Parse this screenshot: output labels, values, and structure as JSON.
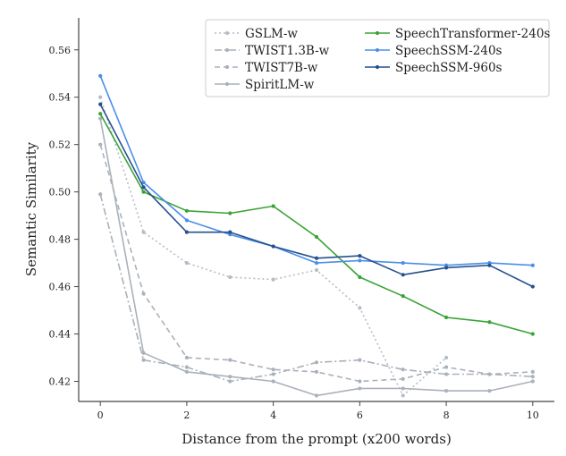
{
  "chart_data": {
    "type": "line",
    "xlabel": "Distance from the prompt (x200 words)",
    "ylabel": "Semantic Similarity",
    "xlim": [
      -0.5,
      10.5
    ],
    "ylim": [
      0.4115,
      0.5735
    ],
    "xticks": [
      0,
      2,
      4,
      6,
      8,
      10
    ],
    "yticks": [
      0.42,
      0.44,
      0.46,
      0.48,
      0.5,
      0.52,
      0.54,
      0.56
    ],
    "grid": false,
    "legend_position": "top-right",
    "x": [
      0,
      1,
      2,
      3,
      4,
      5,
      6,
      7,
      8,
      9,
      10
    ],
    "series": [
      {
        "name": "GSLM-w",
        "color": "#b6bcc5",
        "dash": "dotted",
        "x": [
          0,
          1,
          2,
          3,
          4,
          5,
          6,
          7,
          8
        ],
        "values": [
          0.54,
          0.483,
          0.47,
          0.464,
          0.463,
          0.467,
          0.451,
          0.414,
          0.43
        ]
      },
      {
        "name": "TWIST1.3B-w",
        "color": "#aab1ba",
        "dash": "dashdot",
        "values": [
          0.499,
          0.429,
          0.426,
          0.42,
          0.423,
          0.428,
          0.429,
          0.425,
          0.423,
          0.423,
          0.422
        ]
      },
      {
        "name": "TWIST7B-w",
        "color": "#aab1ba",
        "dash": "dashed",
        "values": [
          0.52,
          0.457,
          0.43,
          0.429,
          0.425,
          0.424,
          0.42,
          0.421,
          0.426,
          0.423,
          0.424
        ]
      },
      {
        "name": "SpiritLM-w",
        "color": "#aab1ba",
        "dash": "solid",
        "values": [
          0.531,
          0.432,
          0.424,
          0.422,
          0.42,
          0.414,
          0.417,
          0.417,
          0.416,
          0.416,
          0.42
        ]
      },
      {
        "name": "SpeechTransformer-240s",
        "color": "#3aa335",
        "dash": "solid",
        "values": [
          0.533,
          0.5,
          0.492,
          0.491,
          0.494,
          0.481,
          0.464,
          0.456,
          0.447,
          0.445,
          0.44
        ]
      },
      {
        "name": "SpeechSSM-240s",
        "color": "#4a8fe7",
        "dash": "solid",
        "values": [
          0.549,
          0.504,
          0.488,
          0.482,
          0.477,
          0.47,
          0.471,
          0.47,
          0.469,
          0.47,
          0.469
        ]
      },
      {
        "name": "SpeechSSM-960s",
        "color": "#26508f",
        "dash": "solid",
        "values": [
          0.537,
          0.502,
          0.483,
          0.483,
          0.477,
          0.472,
          0.473,
          0.465,
          0.468,
          0.469,
          0.46
        ]
      }
    ]
  }
}
